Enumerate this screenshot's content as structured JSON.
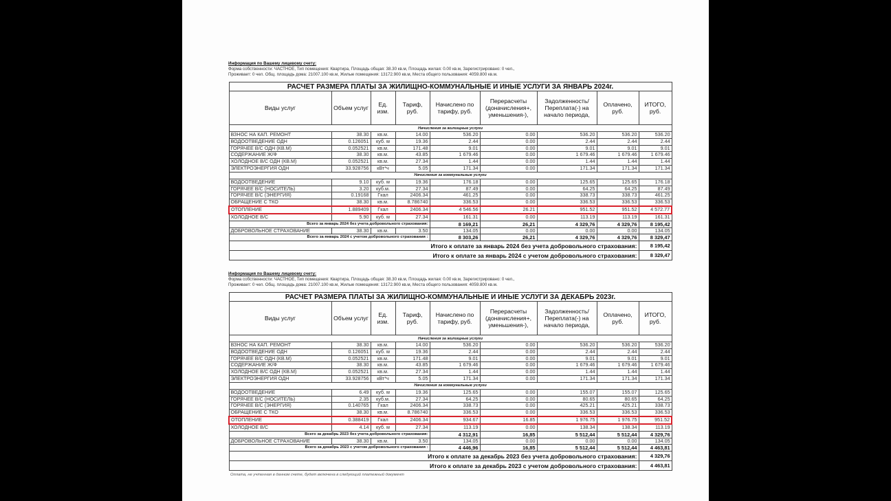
{
  "columns": [
    "Виды услуг",
    "Объем услуг",
    "Ед. изм.",
    "Тариф, руб.",
    "Начислено по тарифу, руб.",
    "Перерасчеты (доначисления+, уменьшения-),",
    "Задолженность/ Переплата(-) на начало периода,",
    "Оплачено, руб.",
    "ИТОГО, руб."
  ],
  "highlight_color": "#d8222c",
  "statements": [
    {
      "info_heading": "Информация по Вашему лицевому счету:",
      "info_line1": "Форма собственности: ЧАСТНОЕ, Тип помещения: Квартира, Площадь общая: 38.30 кв.м, Площадь жилая: 0.00 кв.м, Зарегистрировано: 0 чел.,",
      "info_line2": "Проживает: 0 чел. Общ. площадь дома: 21007.100 кв.м, Жилые помещения: 13172.900 кв.м, Места общего пользования: 4059.800 кв.м.",
      "title": "РАСЧЕТ РАЗМЕРА ПЛАТЫ ЗА ЖИЛИЩНО-КОММУНАЛЬНЫЕ И ИНЫЕ УСЛУГИ ЗА ЯНВАРЬ 2024г.",
      "sections": [
        {
          "label": "Начисления за жилищные услуги",
          "rows": [
            {
              "cells": [
                "ВЗНОС НА КАП. РЕМОНТ",
                "38.30",
                "кв.м.",
                "14.00",
                "536.20",
                "0.00",
                "536.20",
                "536.20",
                "536.20"
              ]
            },
            {
              "cells": [
                "ВОДООТВЕДЕНИЕ ОДН",
                "0.126051",
                "куб. м",
                "19.36",
                "2.44",
                "0.00",
                "2.44",
                "2.44",
                "2.44"
              ]
            },
            {
              "cells": [
                "ГОРЯЧЕЕ В/С ОДН (КВ.М)",
                "0.052521",
                "кв.м.",
                "171.48",
                "9.01",
                "0.00",
                "9.01",
                "9.01",
                "9.01"
              ]
            },
            {
              "cells": [
                "СОДЕРЖАНИЕ Ж/Ф",
                "38.30",
                "кв.м.",
                "43.85",
                "1 679.46",
                "0.00",
                "1 679.46",
                "1 679.46",
                "1 679.46"
              ]
            },
            {
              "cells": [
                "ХОЛОДНОЕ В/С ОДН (КВ.М)",
                "0.052521",
                "кв.м.",
                "27.34",
                "1.44",
                "0.00",
                "1.44",
                "1.44",
                "1.44"
              ]
            },
            {
              "cells": [
                "ЭЛЕКТРОЭНЕРГИЯ ОДН",
                "33.928756",
                "кВт*ч",
                "5.05",
                "171.34",
                "0.00",
                "171.34",
                "171.34",
                "171.34"
              ]
            }
          ]
        },
        {
          "label": "Начисления за коммунальные услуги",
          "rows": [
            {
              "cells": [
                "ВОДООТВЕДЕНИЕ",
                "9.10",
                "куб. м",
                "19.36",
                "176.18",
                "0.00",
                "125.65",
                "125.65",
                "176.18"
              ]
            },
            {
              "cells": [
                "ГОРЯЧЕЕ В/С (НОСИТЕЛЬ)",
                "3.20",
                "куб.м.",
                "27.34",
                "87.49",
                "0.00",
                "64.25",
                "64.25",
                "87.49"
              ]
            },
            {
              "cells": [
                "ГОРЯЧЕЕ В/С (ЭНЕРГИЯ)",
                "0.19168",
                "Гкал",
                "2406.34",
                "461.25",
                "0.00",
                "338.73",
                "338.73",
                "461.25"
              ]
            },
            {
              "cells": [
                "ОБРАЩЕНИЕ С ТКО",
                "38.30",
                "кв.м.",
                "8.786740",
                "336.53",
                "0.00",
                "336.53",
                "336.53",
                "336.53"
              ]
            },
            {
              "cells": [
                "ОТОПЛЕНИЕ",
                "1.889409",
                "Гкал",
                "2406.34",
                "4 546.56",
                "26.21",
                "951.52",
                "951.52",
                "4 572.77"
              ],
              "highlighted": true
            },
            {
              "cells": [
                "ХОЛОДНОЕ В/С",
                "5.90",
                "куб. м",
                "27.34",
                "161.31",
                "0.00",
                "113.19",
                "113.19",
                "161.31"
              ]
            }
          ]
        }
      ],
      "total_without": {
        "label": "Всего за январь  2024 без учета добровольного страхования:",
        "values": [
          "8 169,21",
          "26,21",
          "4 329,76",
          "4 329,76",
          "8 195,42"
        ]
      },
      "insurance": {
        "cells": [
          "ДОБРОВОЛЬНОЕ СТРАХОВАНИЕ",
          "38.30",
          "кв.м.",
          "3.50",
          "134.05",
          "0.00",
          "0.00",
          "0.00",
          "134.05"
        ]
      },
      "total_with": {
        "label": "Всего за январь  2024 с учетом добровольного страхования :",
        "values": [
          "8 303,26",
          "26,21",
          "4 329,76",
          "4 329,76",
          "8 329,47"
        ]
      },
      "pay_without": {
        "label": "Итого к оплате за январь 2024 без учета добровольного страхования:",
        "value": "8 195,42"
      },
      "pay_with": {
        "label": "Итого к оплате за январь 2024 с учетом добровольного страхования:",
        "value": "8 329,47"
      }
    },
    {
      "info_heading": "Информация по Вашему лицевому счету:",
      "info_line1": "Форма собственности: ЧАСТНОЕ, Тип помещения: Квартира, Площадь общая: 38.30 кв.м, Площадь жилая: 0.00 кв.м, Зарегистрировано: 0 чел.,",
      "info_line2": "Проживает: 0 чел. Общ. площадь дома: 21007.100 кв.м, Жилые помещения: 13172.900 кв.м, Места общего пользования: 4059.800 кв.м.",
      "title": "РАСЧЕТ РАЗМЕРА ПЛАТЫ ЗА ЖИЛИЩНО-КОММУНАЛЬНЫЕ И ИНЫЕ УСЛУГИ ЗА ДЕКАБРЬ 2023г.",
      "sections": [
        {
          "label": "Начисления за жилищные услуги",
          "rows": [
            {
              "cells": [
                "ВЗНОС НА КАП. РЕМОНТ",
                "38.30",
                "кв.м.",
                "14.00",
                "536.20",
                "0.00",
                "536.20",
                "536.20",
                "536.20"
              ]
            },
            {
              "cells": [
                "ВОДООТВЕДЕНИЕ ОДН",
                "0.126051",
                "куб. м",
                "19.36",
                "2.44",
                "0.00",
                "2.44",
                "2.44",
                "2.44"
              ]
            },
            {
              "cells": [
                "ГОРЯЧЕЕ В/С ОДН (КВ.М)",
                "0.052521",
                "кв.м.",
                "171.48",
                "9.01",
                "0.00",
                "9.01",
                "9.01",
                "9.01"
              ]
            },
            {
              "cells": [
                "СОДЕРЖАНИЕ Ж/Ф",
                "38.30",
                "кв.м.",
                "43.85",
                "1 679.46",
                "0.00",
                "1 679.46",
                "1 679.46",
                "1 679.46"
              ]
            },
            {
              "cells": [
                "ХОЛОДНОЕ В/С ОДН (КВ.М)",
                "0.052521",
                "кв.м.",
                "27.34",
                "1.44",
                "0.00",
                "1.44",
                "1.44",
                "1.44"
              ]
            },
            {
              "cells": [
                "ЭЛЕКТРОЭНЕРГИЯ ОДН",
                "33.928756",
                "кВт*ч",
                "5.05",
                "171.34",
                "0.00",
                "171.34",
                "171.34",
                "171.34"
              ]
            }
          ]
        },
        {
          "label": "Начисления за коммунальные услуги",
          "rows": [
            {
              "cells": [
                "ВОДООТВЕДЕНИЕ",
                "6.49",
                "куб. м",
                "19.36",
                "125.65",
                "0.00",
                "155.07",
                "155.07",
                "125.65"
              ]
            },
            {
              "cells": [
                "ГОРЯЧЕЕ В/С (НОСИТЕЛЬ)",
                "2.35",
                "куб.м.",
                "27.34",
                "64.25",
                "0.00",
                "80.65",
                "80.65",
                "64.25"
              ]
            },
            {
              "cells": [
                "ГОРЯЧЕЕ В/С (ЭНЕРГИЯ)",
                "0.140765",
                "Гкал",
                "2406.34",
                "338.73",
                "0.00",
                "425.21",
                "425.21",
                "338.73"
              ]
            },
            {
              "cells": [
                "ОБРАЩЕНИЕ С ТКО",
                "38.30",
                "кв.м.",
                "8.786740",
                "336.53",
                "0.00",
                "336.53",
                "336.53",
                "336.53"
              ]
            },
            {
              "cells": [
                "ОТОПЛЕНИЕ",
                "0.388419",
                "Гкал",
                "2406.34",
                "934.67",
                "16.85",
                "1 976.75",
                "1 976.75",
                "951.52"
              ],
              "highlighted": true
            },
            {
              "cells": [
                "ХОЛОДНОЕ В/С",
                "4.14",
                "куб. м",
                "27.34",
                "113.19",
                "0.00",
                "138.34",
                "138.34",
                "113.19"
              ]
            }
          ]
        }
      ],
      "total_without": {
        "label": "Всего за декабрь  2023 без учета добровольного страхования:",
        "values": [
          "4 312,91",
          "16,85",
          "5 512,44",
          "5 512,44",
          "4 329,76"
        ]
      },
      "insurance": {
        "cells": [
          "ДОБРОВОЛЬНОЕ СТРАХОВАНИЕ",
          "38.30",
          "кв.м.",
          "3.50",
          "134.05",
          "0.00",
          "0.00",
          "0.00",
          "134.05"
        ]
      },
      "total_with": {
        "label": "Всего за декабрь  2023 с учетом добровольного страхования :",
        "values": [
          "4 446,96",
          "16,85",
          "5 512,44",
          "5 512,44",
          "4 463,81"
        ]
      },
      "pay_without": {
        "label": "Итого к оплате за декабрь 2023 без учета добровольного страхования:",
        "value": "4 329,76"
      },
      "pay_with": {
        "label": "Итого к оплате за декабрь 2023 с учетом добровольного страхования:",
        "value": "4 463,81"
      }
    }
  ],
  "footer": "Оплата, не учтенная в данном счете, будет включена в следующий платежный документ"
}
